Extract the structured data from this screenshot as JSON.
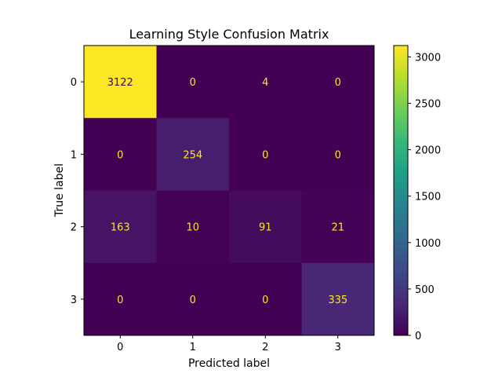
{
  "chart_data": {
    "type": "heatmap",
    "title": "Learning Style Confusion Matrix",
    "xlabel": "Predicted label",
    "ylabel": "True label",
    "x_categories": [
      "0",
      "1",
      "2",
      "3"
    ],
    "y_categories": [
      "0",
      "1",
      "2",
      "3"
    ],
    "matrix": [
      [
        3122,
        0,
        4,
        0
      ],
      [
        0,
        254,
        0,
        0
      ],
      [
        163,
        10,
        91,
        21
      ],
      [
        0,
        0,
        0,
        335
      ]
    ],
    "colormap": "viridis",
    "colorbar": {
      "range": [
        0,
        3122
      ],
      "ticks": [
        0,
        500,
        1000,
        1500,
        2000,
        2500,
        3000
      ],
      "tick_labels": [
        "0",
        "500",
        "1000",
        "1500",
        "2000",
        "2500",
        "3000"
      ]
    },
    "annotation_colors": {
      "on_dark": "#fde725",
      "on_light": "#440154"
    }
  }
}
